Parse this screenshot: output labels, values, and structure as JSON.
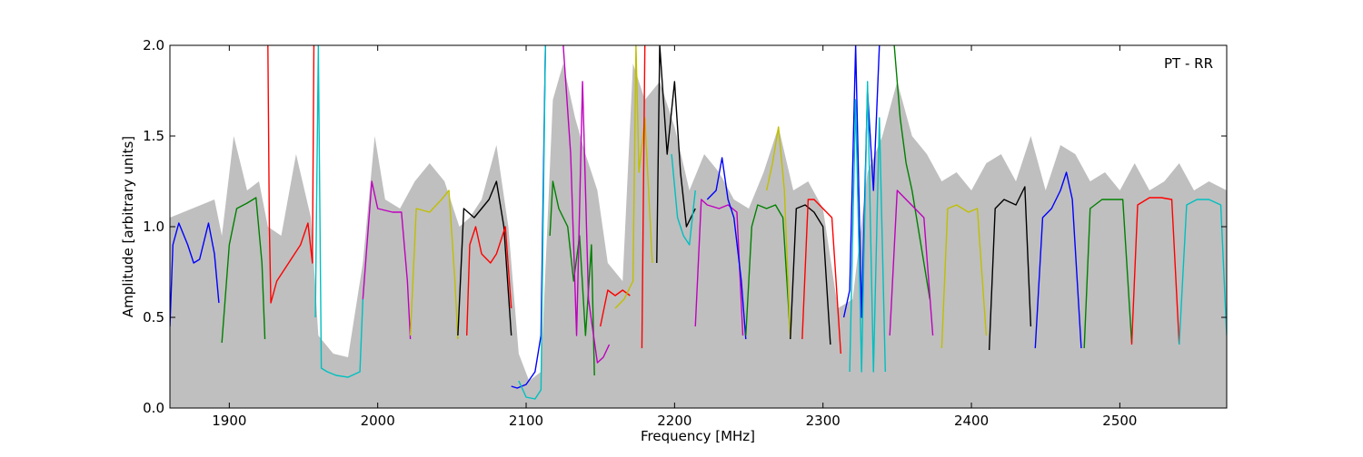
{
  "chart_data": {
    "type": "line",
    "annotation": "PT - RR",
    "xlabel": "Frequency [MHz]",
    "ylabel": "Amplitude [arbitrary units]",
    "xlim": [
      1860,
      2572
    ],
    "ylim": [
      0.0,
      2.0
    ],
    "xticks": [
      1900,
      2000,
      2100,
      2200,
      2300,
      2400,
      2500
    ],
    "xtick_labels": [
      "1900",
      "2000",
      "2100",
      "2200",
      "2300",
      "2400",
      "2500"
    ],
    "yticks": [
      0.0,
      0.5,
      1.0,
      1.5,
      2.0
    ],
    "ytick_labels": [
      "0.0",
      "0.5",
      "1.0",
      "1.5",
      "2.0"
    ],
    "grid": false,
    "colors": {
      "envelope": "#bfbfbf",
      "blue": "#0000ff",
      "green": "#008000",
      "red": "#ff0000",
      "cyan": "#00bfbf",
      "magenta": "#bf00bf",
      "yellow": "#bfbf00",
      "black": "#000000"
    },
    "envelope": {
      "x": [
        1860,
        1875,
        1890,
        1895,
        1903,
        1912,
        1920,
        1926,
        1935,
        1945,
        1955,
        1960,
        1970,
        1980,
        1990,
        1998,
        2005,
        2015,
        2025,
        2035,
        2045,
        2055,
        2062,
        2070,
        2080,
        2088,
        2095,
        2102,
        2110,
        2118,
        2125,
        2133,
        2140,
        2148,
        2155,
        2165,
        2172,
        2180,
        2190,
        2200,
        2210,
        2220,
        2230,
        2240,
        2250,
        2260,
        2270,
        2280,
        2290,
        2300,
        2310,
        2320,
        2330,
        2340,
        2350,
        2360,
        2370,
        2380,
        2390,
        2400,
        2410,
        2420,
        2430,
        2440,
        2450,
        2460,
        2470,
        2480,
        2490,
        2500,
        2510,
        2520,
        2530,
        2540,
        2550,
        2560,
        2572
      ],
      "y": [
        1.05,
        1.1,
        1.15,
        0.95,
        1.5,
        1.2,
        1.25,
        1.0,
        0.95,
        1.4,
        1.05,
        0.4,
        0.3,
        0.28,
        0.8,
        1.5,
        1.15,
        1.1,
        1.25,
        1.35,
        1.25,
        1.0,
        1.05,
        1.15,
        1.45,
        1.0,
        0.3,
        0.15,
        0.2,
        1.7,
        1.9,
        1.6,
        1.4,
        1.2,
        0.8,
        0.7,
        1.9,
        1.7,
        1.8,
        1.55,
        1.2,
        1.4,
        1.3,
        1.15,
        1.1,
        1.3,
        1.55,
        1.2,
        1.25,
        1.1,
        0.55,
        0.6,
        1.3,
        1.5,
        1.8,
        1.5,
        1.4,
        1.25,
        1.3,
        1.2,
        1.35,
        1.4,
        1.25,
        1.5,
        1.2,
        1.45,
        1.4,
        1.25,
        1.3,
        1.2,
        1.35,
        1.2,
        1.25,
        1.35,
        1.2,
        1.25,
        1.2
      ]
    },
    "series": [
      {
        "color": "blue",
        "x": [
          1860,
          1862,
          1866,
          1872,
          1876,
          1880,
          1886,
          1890,
          1893
        ],
        "y": [
          0.45,
          0.9,
          1.02,
          0.9,
          0.8,
          0.82,
          1.02,
          0.85,
          0.58
        ]
      },
      {
        "color": "green",
        "x": [
          1895,
          1900,
          1905,
          1912,
          1918,
          1922,
          1924
        ],
        "y": [
          0.36,
          0.9,
          1.1,
          1.13,
          1.16,
          0.8,
          0.38
        ]
      },
      {
        "color": "red",
        "x": [
          1926,
          1927,
          1928,
          1932,
          1940,
          1948,
          1953,
          1956,
          1957
        ],
        "y": [
          2.0,
          1.0,
          0.58,
          0.7,
          0.8,
          0.9,
          1.02,
          0.8,
          2.0
        ]
      },
      {
        "color": "cyan",
        "x": [
          1958,
          1960,
          1962,
          1966,
          1972,
          1980,
          1988,
          1990
        ],
        "y": [
          0.5,
          2.0,
          0.22,
          0.2,
          0.18,
          0.17,
          0.2,
          0.6
        ]
      },
      {
        "color": "magenta",
        "x": [
          1990,
          1996,
          2000,
          2010,
          2016,
          2020,
          2022
        ],
        "y": [
          0.6,
          1.25,
          1.1,
          1.08,
          1.08,
          0.7,
          0.38
        ]
      },
      {
        "color": "yellow",
        "x": [
          2022,
          2026,
          2035,
          2043,
          2048,
          2052,
          2054
        ],
        "y": [
          0.4,
          1.1,
          1.08,
          1.15,
          1.2,
          0.7,
          0.38
        ]
      },
      {
        "color": "black",
        "x": [
          2054,
          2058,
          2065,
          2075,
          2080,
          2085,
          2090
        ],
        "y": [
          0.4,
          1.1,
          1.05,
          1.15,
          1.25,
          1.0,
          0.4
        ]
      },
      {
        "color": "red",
        "x": [
          2060,
          2062,
          2066,
          2070,
          2076,
          2080,
          2086,
          2090
        ],
        "y": [
          0.4,
          0.9,
          1.0,
          0.85,
          0.8,
          0.85,
          1.0,
          0.55
        ]
      },
      {
        "color": "blue",
        "x": [
          2090,
          2094,
          2100,
          2106,
          2110,
          2113
        ],
        "y": [
          0.12,
          0.11,
          0.13,
          0.2,
          0.4,
          2.0
        ]
      },
      {
        "color": "cyan",
        "x": [
          2095,
          2100,
          2106,
          2110,
          2113
        ],
        "y": [
          0.15,
          0.06,
          0.05,
          0.1,
          2.0
        ]
      },
      {
        "color": "green",
        "x": [
          2116,
          2118,
          2122,
          2128,
          2132,
          2136,
          2140,
          2144,
          2146
        ],
        "y": [
          0.95,
          1.25,
          1.1,
          1.0,
          0.7,
          0.95,
          0.4,
          0.9,
          0.18
        ]
      },
      {
        "color": "magenta",
        "x": [
          2125,
          2130,
          2134,
          2138,
          2142,
          2148,
          2152,
          2156
        ],
        "y": [
          2.0,
          1.4,
          0.4,
          1.8,
          0.6,
          0.25,
          0.28,
          0.35
        ]
      },
      {
        "color": "red",
        "x": [
          2150,
          2155,
          2160,
          2165,
          2170
        ],
        "y": [
          0.45,
          0.65,
          0.62,
          0.65,
          0.62
        ]
      },
      {
        "color": "yellow",
        "x": [
          2160,
          2166,
          2172,
          2174,
          2176,
          2180,
          2185
        ],
        "y": [
          0.55,
          0.6,
          0.7,
          2.0,
          1.3,
          1.6,
          0.8
        ]
      },
      {
        "color": "red",
        "x": [
          2178,
          2180
        ],
        "y": [
          0.33,
          2.0
        ]
      },
      {
        "color": "black",
        "x": [
          2188,
          2190,
          2195,
          2200,
          2204,
          2208,
          2214
        ],
        "y": [
          0.8,
          2.0,
          1.4,
          1.8,
          1.3,
          1.0,
          1.1
        ]
      },
      {
        "color": "cyan",
        "x": [
          2198,
          2202,
          2206,
          2210,
          2214
        ],
        "y": [
          1.4,
          1.05,
          0.95,
          0.9,
          1.2
        ]
      },
      {
        "color": "magenta",
        "x": [
          2214,
          2218,
          2222,
          2230,
          2236,
          2242,
          2246
        ],
        "y": [
          0.45,
          1.15,
          1.12,
          1.1,
          1.12,
          1.08,
          0.4
        ]
      },
      {
        "color": "blue",
        "x": [
          2222,
          2228,
          2232,
          2236,
          2240,
          2245,
          2248
        ],
        "y": [
          1.15,
          1.2,
          1.38,
          1.15,
          1.05,
          0.7,
          0.38
        ]
      },
      {
        "color": "green",
        "x": [
          2248,
          2252,
          2256,
          2262,
          2268,
          2273,
          2278
        ],
        "y": [
          0.4,
          1.0,
          1.12,
          1.1,
          1.12,
          1.05,
          0.4
        ]
      },
      {
        "color": "yellow",
        "x": [
          2262,
          2266,
          2270,
          2274,
          2278
        ],
        "y": [
          1.2,
          1.35,
          1.55,
          1.2,
          0.38
        ]
      },
      {
        "color": "black",
        "x": [
          2278,
          2282,
          2288,
          2294,
          2300,
          2305
        ],
        "y": [
          0.38,
          1.1,
          1.12,
          1.08,
          1.0,
          0.35
        ]
      },
      {
        "color": "red",
        "x": [
          2286,
          2290,
          2294,
          2300,
          2306,
          2312
        ],
        "y": [
          0.38,
          1.15,
          1.15,
          1.1,
          1.05,
          0.3
        ]
      },
      {
        "color": "blue",
        "x": [
          2314,
          2318,
          2322,
          2326,
          2330,
          2334,
          2338
        ],
        "y": [
          0.5,
          0.65,
          2.0,
          0.5,
          1.75,
          1.2,
          2.0
        ]
      },
      {
        "color": "cyan",
        "x": [
          2318,
          2322,
          2326,
          2330,
          2334,
          2338,
          2342
        ],
        "y": [
          0.2,
          1.7,
          0.2,
          1.8,
          0.2,
          1.6,
          0.2
        ]
      },
      {
        "color": "green",
        "x": [
          2348,
          2352,
          2356,
          2360,
          2364,
          2368,
          2372
        ],
        "y": [
          2.0,
          1.6,
          1.35,
          1.2,
          1.0,
          0.8,
          0.6
        ]
      },
      {
        "color": "magenta",
        "x": [
          2345,
          2350,
          2356,
          2362,
          2368,
          2374
        ],
        "y": [
          0.4,
          1.2,
          1.15,
          1.1,
          1.05,
          0.4
        ]
      },
      {
        "color": "yellow",
        "x": [
          2380,
          2384,
          2390,
          2398,
          2404,
          2410
        ],
        "y": [
          0.33,
          1.1,
          1.12,
          1.08,
          1.1,
          0.4
        ]
      },
      {
        "color": "black",
        "x": [
          2412,
          2416,
          2422,
          2430,
          2436,
          2440
        ],
        "y": [
          0.32,
          1.1,
          1.15,
          1.12,
          1.22,
          0.45
        ]
      },
      {
        "color": "blue",
        "x": [
          2443,
          2448,
          2454,
          2460,
          2464,
          2468,
          2474
        ],
        "y": [
          0.33,
          1.05,
          1.1,
          1.2,
          1.3,
          1.15,
          0.33
        ]
      },
      {
        "color": "green",
        "x": [
          2476,
          2480,
          2488,
          2496,
          2502,
          2508
        ],
        "y": [
          0.33,
          1.1,
          1.15,
          1.15,
          1.15,
          0.36
        ]
      },
      {
        "color": "red",
        "x": [
          2508,
          2512,
          2520,
          2528,
          2535,
          2540
        ],
        "y": [
          0.35,
          1.12,
          1.16,
          1.16,
          1.15,
          0.35
        ]
      },
      {
        "color": "cyan",
        "x": [
          2540,
          2545,
          2552,
          2560,
          2568,
          2572
        ],
        "y": [
          0.35,
          1.12,
          1.15,
          1.15,
          1.12,
          0.4
        ]
      }
    ]
  }
}
